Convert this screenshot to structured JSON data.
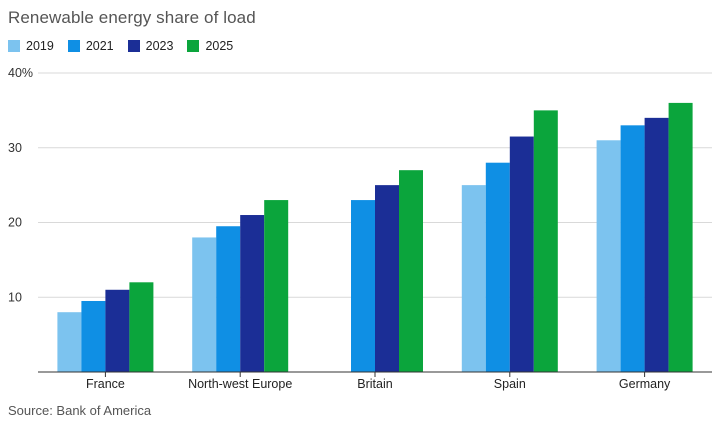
{
  "chart_data": {
    "type": "bar",
    "title": "Renewable energy share of load",
    "source": "Source: Bank of America",
    "categories": [
      "France",
      "North-west Europe",
      "Britain",
      "Spain",
      "Germany"
    ],
    "series": [
      {
        "name": "2019",
        "color": "#7cc3ef",
        "values": [
          8,
          18,
          null,
          25,
          31
        ]
      },
      {
        "name": "2021",
        "color": "#0f8fe4",
        "values": [
          9.5,
          19.5,
          23,
          28,
          33
        ]
      },
      {
        "name": "2023",
        "color": "#1b2e96",
        "values": [
          11,
          21,
          25,
          31.5,
          34
        ]
      },
      {
        "name": "2025",
        "color": "#0ba53c",
        "values": [
          12,
          23,
          27,
          35,
          36
        ]
      }
    ],
    "yticks": [
      "10",
      "20",
      "30",
      "40%"
    ],
    "ytick_values": [
      10,
      20,
      30,
      40
    ],
    "ylim": [
      0,
      40
    ],
    "grid": true,
    "legend": "top-left"
  }
}
